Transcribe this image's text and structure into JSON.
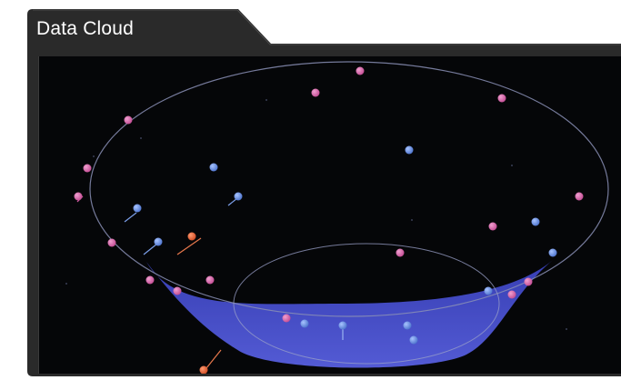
{
  "panel": {
    "title": "Data Cloud"
  },
  "colors": {
    "frame": "#2b2b2b",
    "viewport": "#050608",
    "funnel": "#4d55d8",
    "ring": "#8a8fb5",
    "pink_point": "#d65aa4",
    "blue_point": "#5f86d9",
    "orange_point": "#e0582e"
  },
  "icons": {
    "points": "sphere-marker"
  }
}
